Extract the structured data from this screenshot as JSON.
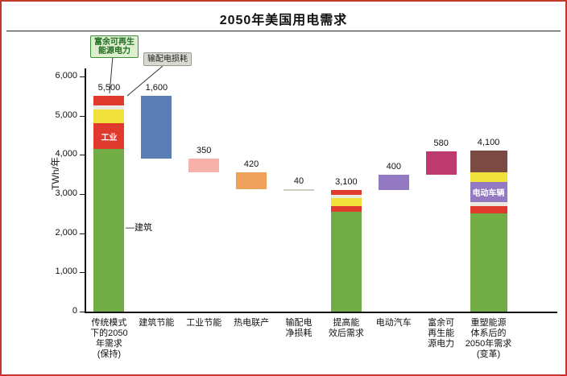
{
  "title": "2050年美国用电需求",
  "y_axis": {
    "label": "TWh/年",
    "ticks": [
      "6,000",
      "5,000",
      "4,000",
      "3,000",
      "2,000",
      "1,000",
      "0"
    ]
  },
  "annotations": {
    "surplus": {
      "lines": [
        "富余可再生",
        "能源电力"
      ]
    },
    "td_loss": {
      "label": "输配电损耗"
    },
    "building": {
      "label": "—建筑"
    }
  },
  "chart_data": {
    "type": "bar",
    "subtype": "waterfall-stacked",
    "title": "2050年美国用电需求",
    "ylabel": "TWh/年",
    "ylim": [
      0,
      6000
    ],
    "grid": false,
    "legend": false,
    "colors": {
      "green": "#72ac45",
      "red": "#e03a2e",
      "yellow": "#f0e13d",
      "lightgray": "#e9e9e0",
      "blue": "#5b7fb4",
      "pink": "#f6b2aa",
      "orange": "#efa25c",
      "gray": "#ccccc2",
      "purple": "#9379c2",
      "magenta": "#bd3a6f",
      "brown": "#7b4a42"
    },
    "bars": [
      {
        "category": [
          "传统模式",
          "下的2050",
          "年需求",
          "(保持)"
        ],
        "value_label": "5,500",
        "total": 5500,
        "base": 0,
        "segments": [
          {
            "color": "green",
            "value": 4150
          },
          {
            "color": "red",
            "value": 650,
            "text": "工业"
          },
          {
            "color": "yellow",
            "value": 350
          },
          {
            "color": "lightgray",
            "value": 100
          },
          {
            "color": "red",
            "value": 250
          }
        ]
      },
      {
        "category": [
          "建筑节能"
        ],
        "value_label": "1,600",
        "total": 1600,
        "base": 3900,
        "segments": [
          {
            "color": "blue",
            "value": 1600
          }
        ]
      },
      {
        "category": [
          "工业节能"
        ],
        "value_label": "350",
        "total": 350,
        "base": 3550,
        "segments": [
          {
            "color": "pink",
            "value": 350
          }
        ]
      },
      {
        "category": [
          "热电联产"
        ],
        "value_label": "420",
        "total": 420,
        "base": 3130,
        "segments": [
          {
            "color": "orange",
            "value": 420
          }
        ]
      },
      {
        "category": [
          "输配电",
          "净损耗"
        ],
        "value_label": "40",
        "total": 40,
        "base": 3090,
        "segments": [
          {
            "color": "gray",
            "value": 40
          }
        ]
      },
      {
        "category": [
          "提高能",
          "效后需求"
        ],
        "value_label": "3,100",
        "total": 3100,
        "base": 0,
        "segments": [
          {
            "color": "green",
            "value": 2550
          },
          {
            "color": "red",
            "value": 150
          },
          {
            "color": "yellow",
            "value": 200
          },
          {
            "color": "lightgray",
            "value": 80
          },
          {
            "color": "red",
            "value": 120
          }
        ]
      },
      {
        "category": [
          "电动汽车"
        ],
        "value_label": "400",
        "total": 400,
        "base": 3100,
        "segments": [
          {
            "color": "purple",
            "value": 400
          }
        ]
      },
      {
        "category": [
          "富余可",
          "再生能",
          "源电力"
        ],
        "value_label": "580",
        "total": 580,
        "base": 3500,
        "segments": [
          {
            "color": "magenta",
            "value": 580
          }
        ]
      },
      {
        "category": [
          "重塑能源",
          "体系后的",
          "2050年需求",
          "(变革)"
        ],
        "value_label": "4,100",
        "total": 4100,
        "base": 0,
        "segments": [
          {
            "color": "green",
            "value": 2500
          },
          {
            "color": "red",
            "value": 200
          },
          {
            "color": "lightgray",
            "value": 100
          },
          {
            "color": "purple",
            "value": 500,
            "text": "电动车辆"
          },
          {
            "color": "yellow",
            "value": 250
          },
          {
            "color": "brown",
            "value": 550
          }
        ]
      }
    ]
  }
}
